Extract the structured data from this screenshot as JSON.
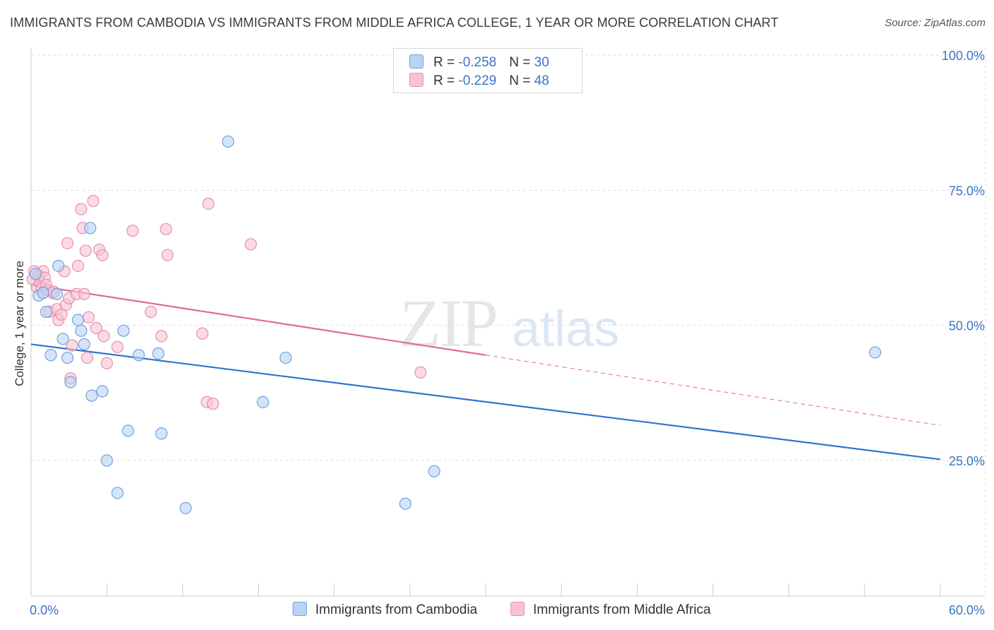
{
  "header": {
    "title": "IMMIGRANTS FROM CAMBODIA VS IMMIGRANTS FROM MIDDLE AFRICA COLLEGE, 1 YEAR OR MORE CORRELATION CHART",
    "source": "Source: ZipAtlas.com"
  },
  "watermark": {
    "zip": "ZIP",
    "atlas": "atlas"
  },
  "legend_top": {
    "rows": [
      {
        "r_label": "R = ",
        "r_value": "-0.258",
        "n_label": "N = ",
        "n_value": "30"
      },
      {
        "r_label": "R = ",
        "r_value": "-0.229",
        "n_label": "N = ",
        "n_value": "48"
      }
    ]
  },
  "legend_bottom": {
    "items": [
      "Immigrants from Cambodia",
      "Immigrants from Middle Africa"
    ]
  },
  "colors": {
    "blue_fill": "#b9d3f5",
    "blue_stroke": "#6fa1dc",
    "blue_line": "#2f74d0",
    "pink_fill": "#f7c3d4",
    "pink_stroke": "#e98eae",
    "pink_line": "#e26a92",
    "grid": "#dddddd",
    "axis_text": "#3b73c4"
  },
  "chart_data": {
    "type": "scatter",
    "title": "IMMIGRANTS FROM CAMBODIA VS IMMIGRANTS FROM MIDDLE AFRICA COLLEGE, 1 YEAR OR MORE CORRELATION CHART",
    "xlabel": "",
    "ylabel": "College, 1 year or more",
    "xlim": [
      0,
      60
    ],
    "ylim": [
      0,
      104
    ],
    "x_tick_labels": [
      "0.0%",
      "60.0%"
    ],
    "y_ticks": [
      25,
      50,
      75,
      100
    ],
    "y_tick_labels": [
      "25.0%",
      "50.0%",
      "75.0%",
      "100.0%"
    ],
    "grid": true,
    "series": [
      {
        "name": "Immigrants from Cambodia",
        "color": "blue",
        "R": -0.258,
        "N": 30,
        "trend": {
          "x0": 0,
          "y0": 46.5,
          "x1": 60,
          "y1": 25.2,
          "dashed_from": null
        },
        "points": [
          [
            0.3,
            59.5
          ],
          [
            0.5,
            55.5
          ],
          [
            0.8,
            56.0
          ],
          [
            1.0,
            52.5
          ],
          [
            1.3,
            44.5
          ],
          [
            1.7,
            55.8
          ],
          [
            1.8,
            61.0
          ],
          [
            2.1,
            47.5
          ],
          [
            2.4,
            44.0
          ],
          [
            2.6,
            39.5
          ],
          [
            3.1,
            51.0
          ],
          [
            3.3,
            49.0
          ],
          [
            3.5,
            46.5
          ],
          [
            3.9,
            68.0
          ],
          [
            4.0,
            37.0
          ],
          [
            4.7,
            37.8
          ],
          [
            5.0,
            25.0
          ],
          [
            5.7,
            19.0
          ],
          [
            6.1,
            49.0
          ],
          [
            6.4,
            30.5
          ],
          [
            7.1,
            44.5
          ],
          [
            8.4,
            44.8
          ],
          [
            8.6,
            30.0
          ],
          [
            10.2,
            16.2
          ],
          [
            13.0,
            84.0
          ],
          [
            15.3,
            35.8
          ],
          [
            16.8,
            44.0
          ],
          [
            24.7,
            17.0
          ],
          [
            26.6,
            23.0
          ],
          [
            55.7,
            45.0
          ]
        ]
      },
      {
        "name": "Immigrants from Middle Africa",
        "color": "pink",
        "R": -0.229,
        "N": 48,
        "trend": {
          "x0": 0,
          "y0": 57.5,
          "x1": 60,
          "y1": 31.5,
          "dashed_from": 30
        },
        "points": [
          [
            0.1,
            58.5
          ],
          [
            0.2,
            60.0
          ],
          [
            0.4,
            57.0
          ],
          [
            0.5,
            59.2
          ],
          [
            0.6,
            58.0
          ],
          [
            0.7,
            56.8
          ],
          [
            0.8,
            60.0
          ],
          [
            0.9,
            58.8
          ],
          [
            1.0,
            57.5
          ],
          [
            1.1,
            56.5
          ],
          [
            1.2,
            52.5
          ],
          [
            1.4,
            56.0
          ],
          [
            1.5,
            56.2
          ],
          [
            1.7,
            53.0
          ],
          [
            1.8,
            51.0
          ],
          [
            2.0,
            52.0
          ],
          [
            2.2,
            60.0
          ],
          [
            2.3,
            53.8
          ],
          [
            2.4,
            65.2
          ],
          [
            2.5,
            55.0
          ],
          [
            2.6,
            40.2
          ],
          [
            2.7,
            46.3
          ],
          [
            3.0,
            55.8
          ],
          [
            3.1,
            61.0
          ],
          [
            3.3,
            71.5
          ],
          [
            3.4,
            68.0
          ],
          [
            3.5,
            55.8
          ],
          [
            3.6,
            63.8
          ],
          [
            3.7,
            44.0
          ],
          [
            3.8,
            51.5
          ],
          [
            4.1,
            73.0
          ],
          [
            4.3,
            49.5
          ],
          [
            4.5,
            64.0
          ],
          [
            4.7,
            63.0
          ],
          [
            4.8,
            48.0
          ],
          [
            5.0,
            43.0
          ],
          [
            5.7,
            46.0
          ],
          [
            6.7,
            67.5
          ],
          [
            7.9,
            52.5
          ],
          [
            8.6,
            48.0
          ],
          [
            8.9,
            67.8
          ],
          [
            9.0,
            63.0
          ],
          [
            11.3,
            48.5
          ],
          [
            11.6,
            35.8
          ],
          [
            11.7,
            72.5
          ],
          [
            12.0,
            35.5
          ],
          [
            14.5,
            65.0
          ],
          [
            25.7,
            41.3
          ]
        ]
      }
    ]
  }
}
